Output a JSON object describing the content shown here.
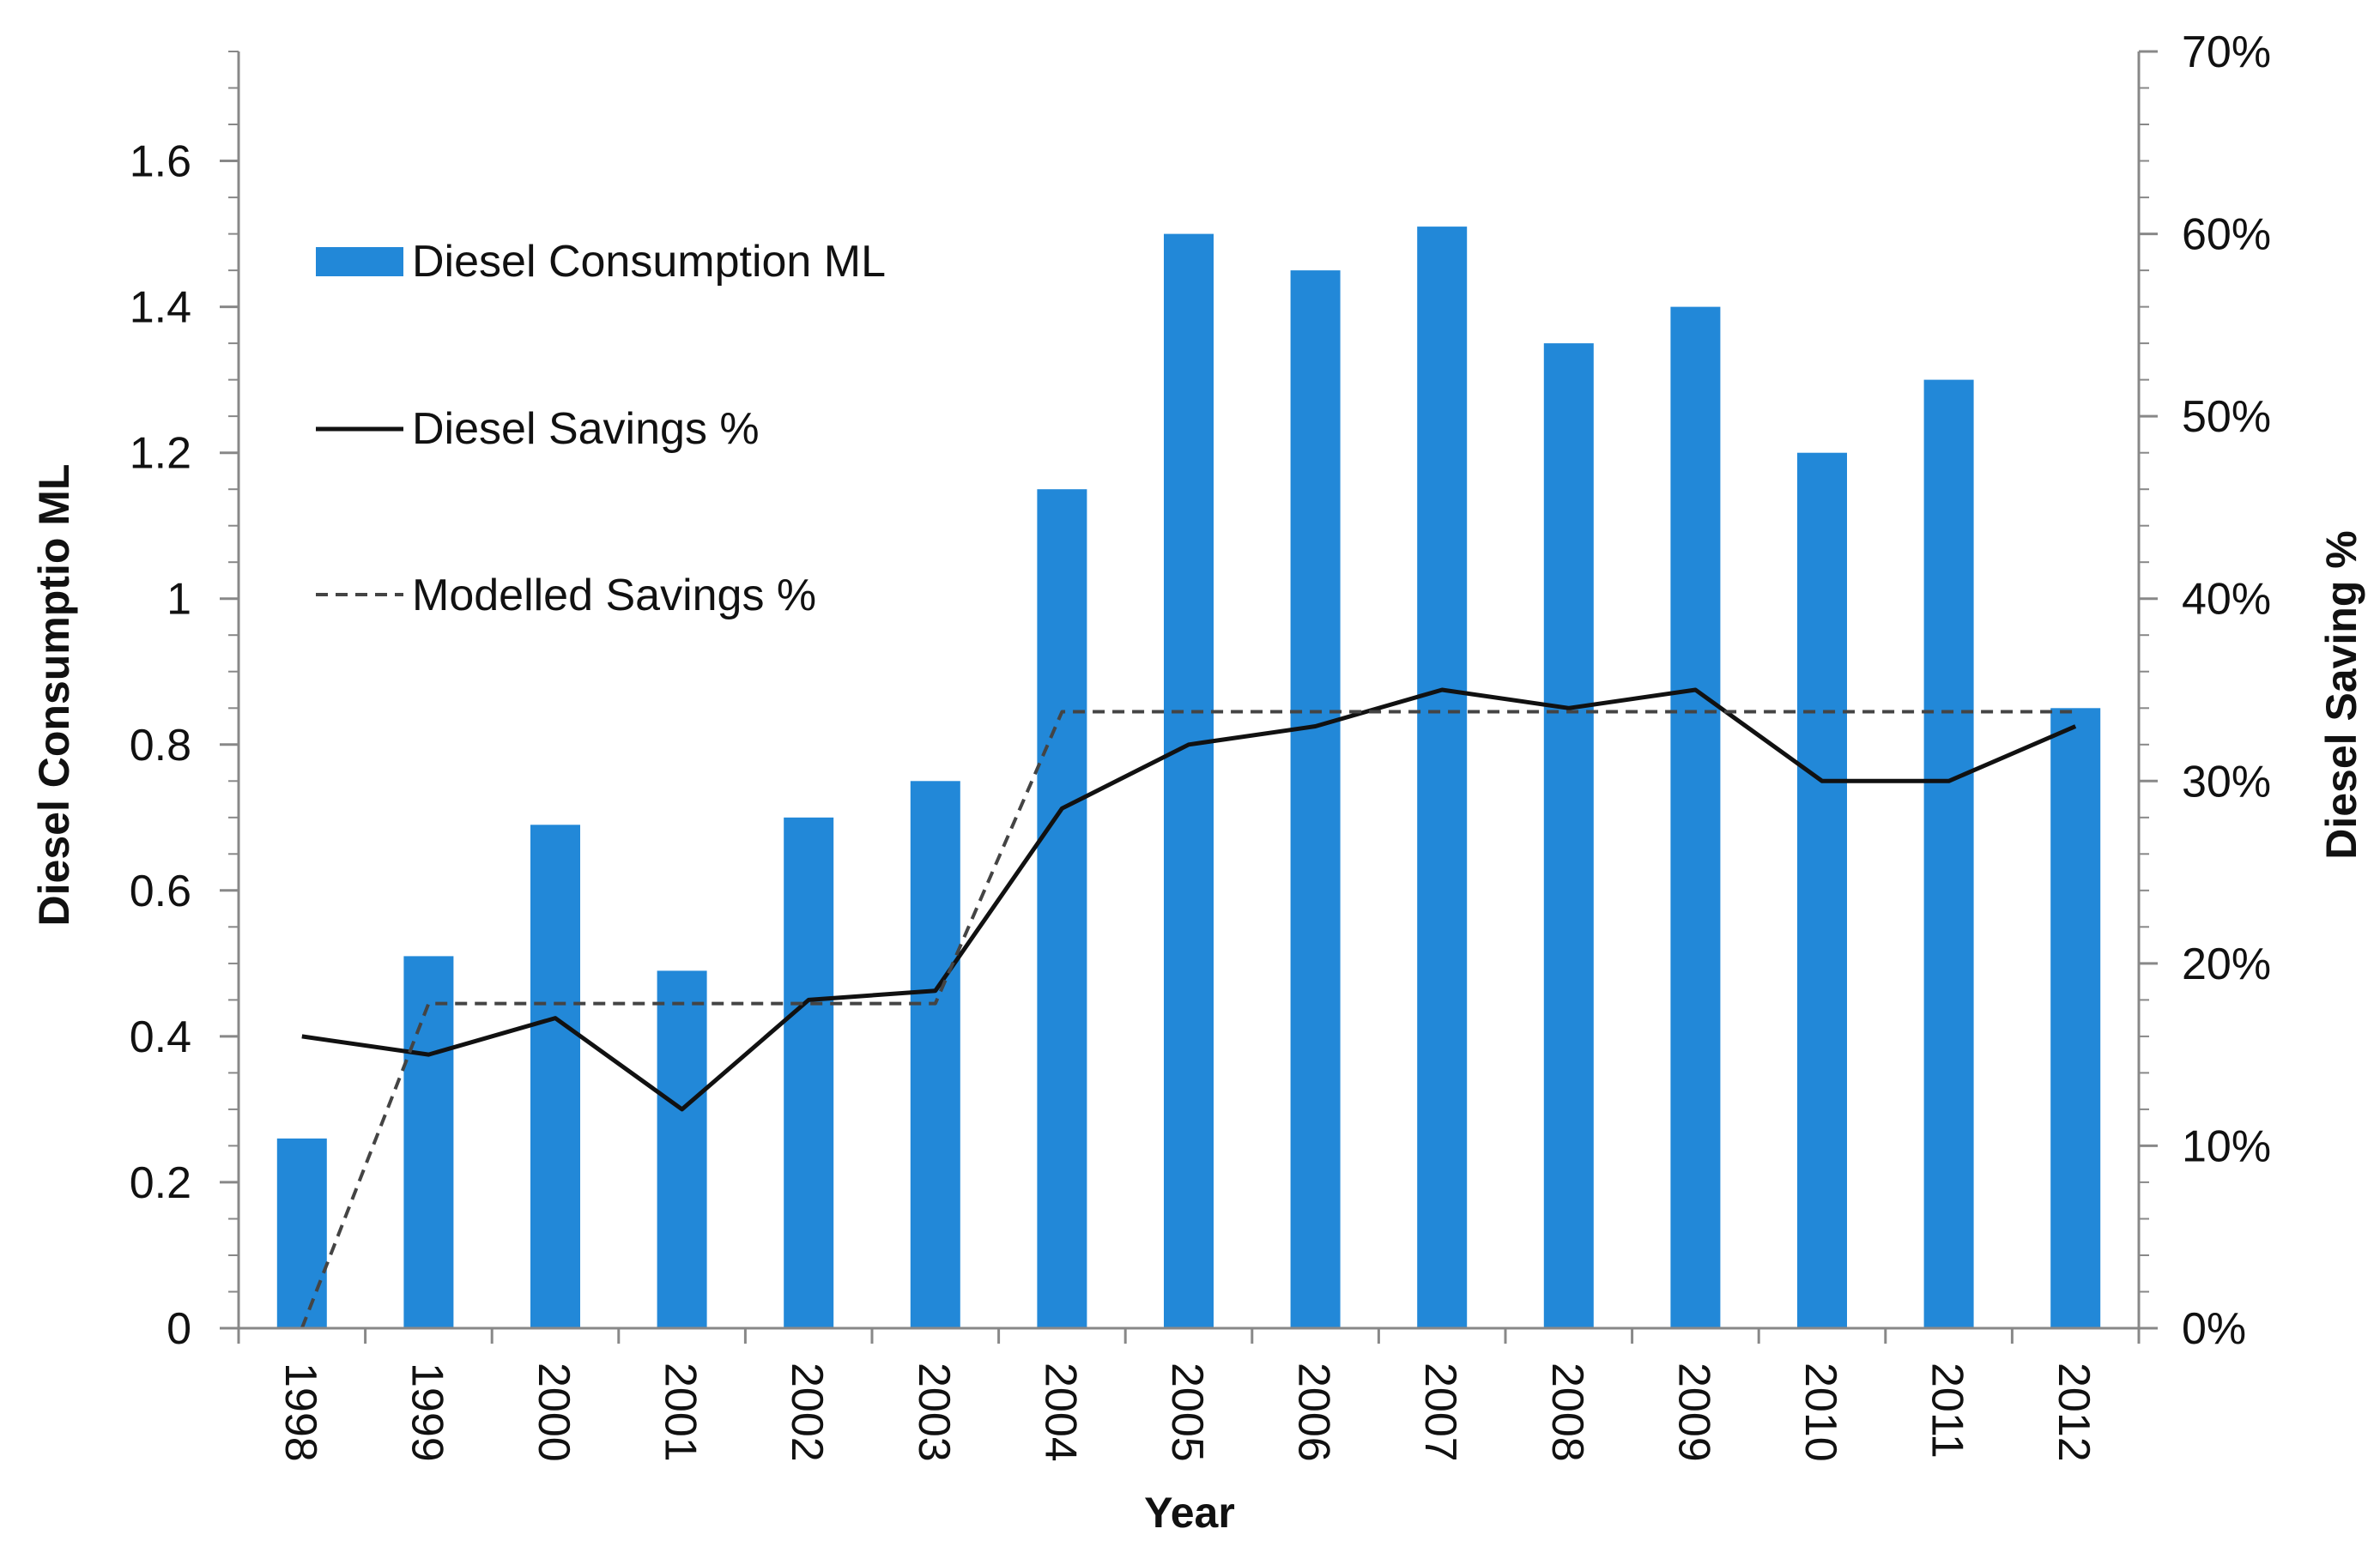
{
  "chart_data": {
    "type": "bar",
    "title": "",
    "categories": [
      "1998",
      "1999",
      "2000",
      "2001",
      "2002",
      "2003",
      "2004",
      "2005",
      "2006",
      "2007",
      "2008",
      "2009",
      "2010",
      "2011",
      "2012"
    ],
    "series": [
      {
        "name": "Diesel Consumption ML",
        "kind": "bar",
        "axis": "left",
        "color": "#2288d8",
        "values": [
          0.26,
          0.51,
          0.69,
          0.49,
          0.7,
          0.75,
          1.15,
          1.5,
          1.45,
          1.51,
          1.35,
          1.4,
          1.2,
          1.3,
          0.85
        ]
      },
      {
        "name": "Diesel Savings %",
        "kind": "line",
        "axis": "right",
        "color": "#111111",
        "dash": "solid",
        "values": [
          16,
          15,
          17,
          12,
          18,
          18.5,
          28.5,
          32,
          33,
          35,
          34,
          35,
          30,
          30,
          33
        ]
      },
      {
        "name": "Modelled Savings %",
        "kind": "line",
        "axis": "right",
        "color": "#444444",
        "dash": "dashed",
        "values": [
          0,
          17.8,
          17.8,
          17.8,
          17.8,
          17.8,
          33.8,
          33.8,
          33.8,
          33.8,
          33.8,
          33.8,
          33.8,
          33.8,
          33.8
        ]
      }
    ],
    "xlabel": "Year",
    "ylabel_left": "Diesel Consumptio ML",
    "ylabel_right": "Diesel Saving %",
    "ylim_left": [
      0,
      1.75
    ],
    "ylim_right": [
      0,
      70
    ],
    "yticks_left": [
      "0",
      "0.2",
      "0.4",
      "0.6",
      "0.8",
      "1",
      "1.2",
      "1.4",
      "1.6"
    ],
    "yticks_left_values": [
      0,
      0.2,
      0.4,
      0.6,
      0.8,
      1.0,
      1.2,
      1.4,
      1.6
    ],
    "yticks_right": [
      "0%",
      "10%",
      "20%",
      "30%",
      "40%",
      "50%",
      "60%",
      "70%"
    ],
    "yticks_right_values": [
      0,
      10,
      20,
      30,
      40,
      50,
      60,
      70
    ],
    "grid": false,
    "legend_position": "top-left"
  }
}
